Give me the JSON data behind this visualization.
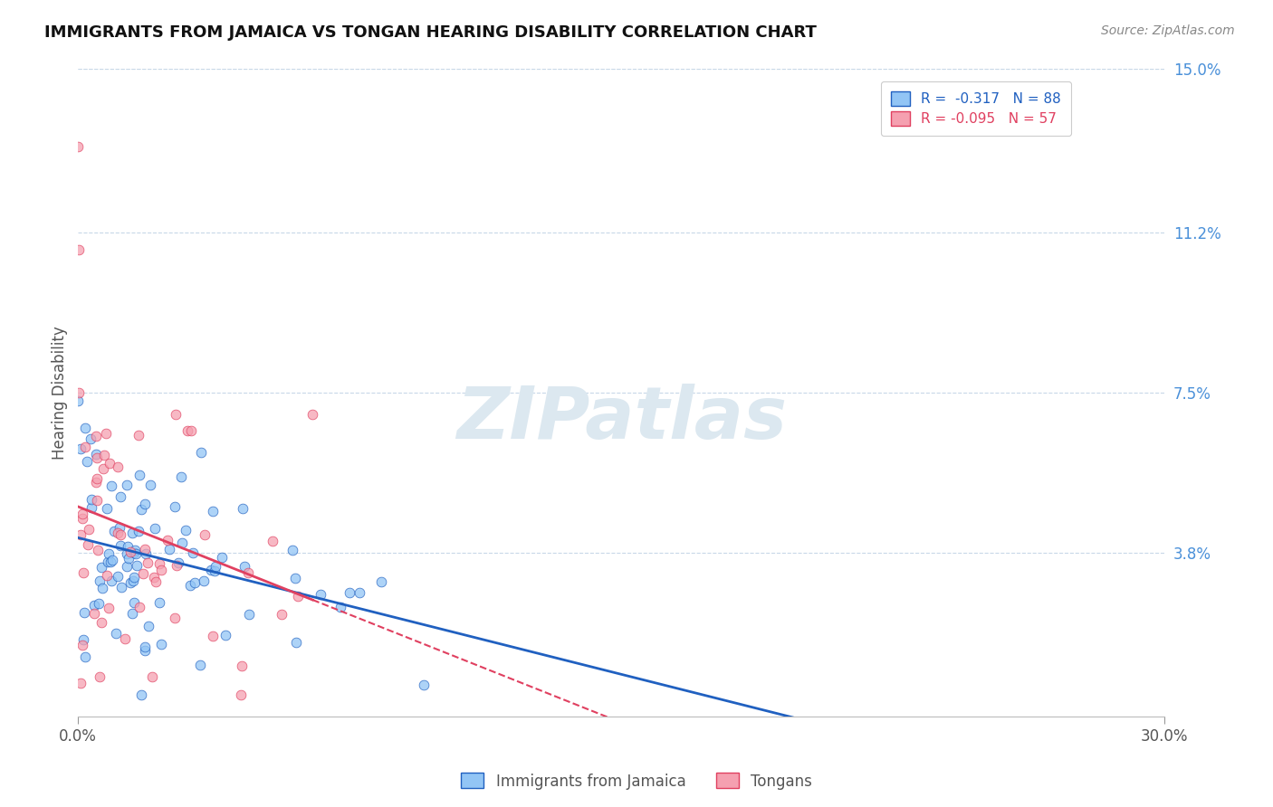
{
  "title": "IMMIGRANTS FROM JAMAICA VS TONGAN HEARING DISABILITY CORRELATION CHART",
  "source": "Source: ZipAtlas.com",
  "ylabel": "Hearing Disability",
  "watermark": "ZIPatlas",
  "x_min": 0.0,
  "x_max": 0.3,
  "y_min": 0.0,
  "y_max": 0.15,
  "y_ticks": [
    0.038,
    0.075,
    0.112,
    0.15
  ],
  "y_tick_labels": [
    "3.8%",
    "7.5%",
    "11.2%",
    "15.0%"
  ],
  "legend_jamaica": "R =  -0.317   N = 88",
  "legend_tongan": "R = -0.095   N = 57",
  "r_jamaica": -0.317,
  "n_jamaica": 88,
  "r_tongan": -0.095,
  "n_tongan": 57,
  "color_jamaica": "#92c5f5",
  "color_tongan": "#f5a0b0",
  "trendline_jamaica": "#2060c0",
  "trendline_tongan": "#e04060",
  "background_color": "#ffffff",
  "grid_color": "#c8d8e8",
  "title_color": "#111111",
  "right_label_color": "#4a90d9",
  "watermark_color": "#dce8f0",
  "jamaica_seed": 7,
  "tongan_seed": 13
}
